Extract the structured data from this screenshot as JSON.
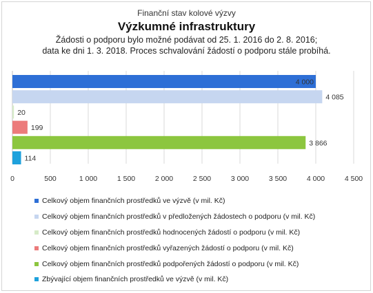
{
  "header": {
    "supertitle": "Finanční stav kolové výzvy",
    "title": "Výzkumné infrastruktury",
    "subtitle_line1": "Žádosti o podporu bylo možné  podávat od 25. 1. 2016 do 2. 8. 2016;",
    "subtitle_line2": "data ke dni 1. 3. 2018. Proces schvalování žádostí o podporu stále probíhá."
  },
  "chart_data": {
    "type": "bar",
    "orientation": "horizontal",
    "title": "Výzkumné infrastruktury",
    "xlim": [
      0,
      4500
    ],
    "xticks": [
      0,
      500,
      1000,
      1500,
      2000,
      2500,
      3000,
      3500,
      4000,
      4500
    ],
    "xtick_labels": [
      "0",
      "500",
      "1 000",
      "1 500",
      "2 000",
      "2 500",
      "3 000",
      "3 500",
      "4 000",
      "4 500"
    ],
    "grid": true,
    "legend_position": "bottom",
    "series": [
      {
        "name": "Celkový objem finančních prostředků ve výzvě (v mil. Kč)",
        "value": 4000,
        "label": "4 000",
        "color": "#2e6fd6",
        "label_inside": true
      },
      {
        "name": "Celkový objem finančních prostředků v předložených žádostech o podporu (v mil. Kč)",
        "value": 4085,
        "label": "4 085",
        "color": "#c6d6f0",
        "label_inside": false
      },
      {
        "name": "Celkový objem finančních prostředků hodnocených žádostí o podporu (v mil. Kč)",
        "value": 20,
        "label": "20",
        "color": "#d6ebc8",
        "label_inside": false
      },
      {
        "name": "Celkový objem finančních prostředků vyřazených žádostí o podporu (v mil. Kč)",
        "value": 199,
        "label": "199",
        "color": "#ec7b7b",
        "label_inside": false
      },
      {
        "name": "Celkový objem finančních prostředků podpořených žádostí o podporu (v mil. Kč)",
        "value": 3866,
        "label": "3 866",
        "color": "#8cc63f",
        "label_inside": false
      },
      {
        "name": "Zbývající objem finančních prostředků ve výzvě (v mil. Kč)",
        "value": 114,
        "label": "114",
        "color": "#1ea1dc",
        "label_inside": false
      }
    ]
  }
}
